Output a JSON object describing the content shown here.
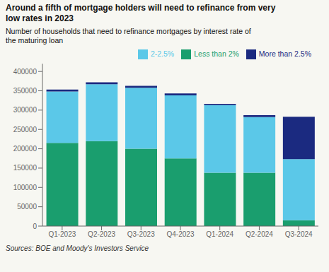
{
  "chart_data": {
    "type": "bar",
    "stacked": true,
    "title": "Around a fifth of mortgage holders will need to refinance from very\nlow rates in 2023",
    "subtitle": "Number of households that need to refinance mortgages by interest rate of\nthe maturing loan",
    "source": "Sources: BOE and Moody's Investors Service",
    "categories": [
      "Q1-2023",
      "Q2-2023",
      "Q3-2023",
      "Q4-2023",
      "Q1-2024",
      "Q2-2024",
      "Q3-2024"
    ],
    "series": [
      {
        "name": "Less than 2%",
        "color": "#1a9e6e",
        "values": [
          215000,
          220000,
          200000,
          175000,
          138000,
          138000,
          15000
        ]
      },
      {
        "name": "2-2.5%",
        "color": "#5bc8e8",
        "values": [
          133000,
          147000,
          158000,
          163000,
          175000,
          144000,
          158000
        ]
      },
      {
        "name": "More than 2.5%",
        "color": "#1b2a80",
        "values": [
          5000,
          5000,
          5000,
          5000,
          3000,
          5000,
          110000
        ]
      }
    ],
    "ylim": [
      0,
      420000
    ],
    "yticks": [
      0,
      50000,
      100000,
      150000,
      200000,
      250000,
      300000,
      350000,
      400000
    ],
    "grid": false,
    "legend": "upper right"
  }
}
